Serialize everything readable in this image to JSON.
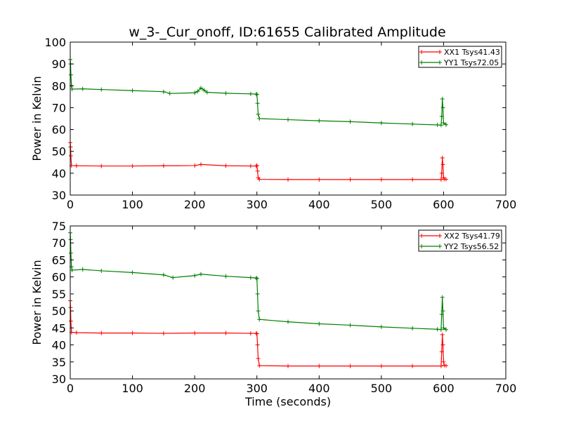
{
  "figure": {
    "title": "w_3-_Cur_onoff, ID:61655 Calibrated Amplitude"
  },
  "chart_data": [
    {
      "type": "line",
      "xlabel": "",
      "ylabel": "Power in Kelvin",
      "xlim": [
        0,
        700
      ],
      "ylim": [
        30,
        100
      ],
      "xticks": [
        0,
        100,
        200,
        300,
        400,
        500,
        600,
        700
      ],
      "yticks": [
        30,
        40,
        50,
        60,
        70,
        80,
        90,
        100
      ],
      "grid": false,
      "legend_position": "top-right",
      "series": [
        {
          "name": "XX1 Tsys41.43",
          "color": "#ff0000",
          "points": [
            [
              0,
              54
            ],
            [
              0.5,
              52
            ],
            [
              1,
              48
            ],
            [
              2,
              43.5
            ],
            [
              10,
              43.4
            ],
            [
              50,
              43.3
            ],
            [
              100,
              43.3
            ],
            [
              150,
              43.4
            ],
            [
              200,
              43.5
            ],
            [
              210,
              44
            ],
            [
              250,
              43.4
            ],
            [
              290,
              43.3
            ],
            [
              299,
              43.3
            ],
            [
              300,
              43.5
            ],
            [
              301,
              41
            ],
            [
              302,
              38
            ],
            [
              304,
              37.2
            ],
            [
              350,
              37.1
            ],
            [
              400,
              37.1
            ],
            [
              450,
              37.1
            ],
            [
              500,
              37.1
            ],
            [
              550,
              37.1
            ],
            [
              596,
              37.1
            ],
            [
              597,
              40
            ],
            [
              598,
              47
            ],
            [
              599,
              44
            ],
            [
              600,
              38
            ],
            [
              601,
              37.3
            ],
            [
              604,
              37.2
            ]
          ]
        },
        {
          "name": "YY1 Tsys72.05",
          "color": "#007f00",
          "points": [
            [
              0,
              92
            ],
            [
              0.5,
              90
            ],
            [
              1,
              85
            ],
            [
              2,
              80
            ],
            [
              3,
              78.5
            ],
            [
              20,
              78.6
            ],
            [
              50,
              78.3
            ],
            [
              100,
              77.8
            ],
            [
              150,
              77.3
            ],
            [
              160,
              76.5
            ],
            [
              200,
              76.8
            ],
            [
              205,
              77.5
            ],
            [
              210,
              79
            ],
            [
              215,
              78
            ],
            [
              220,
              77
            ],
            [
              250,
              76.6
            ],
            [
              290,
              76.3
            ],
            [
              299,
              76.2
            ],
            [
              300,
              76
            ],
            [
              301,
              72
            ],
            [
              302,
              67
            ],
            [
              304,
              65
            ],
            [
              350,
              64.5
            ],
            [
              400,
              64
            ],
            [
              450,
              63.6
            ],
            [
              500,
              63
            ],
            [
              550,
              62.5
            ],
            [
              590,
              62.1
            ],
            [
              596,
              62
            ],
            [
              597,
              66
            ],
            [
              598,
              74
            ],
            [
              599,
              70
            ],
            [
              600,
              63
            ],
            [
              604,
              62.2
            ]
          ]
        }
      ]
    },
    {
      "type": "line",
      "xlabel": "Time (seconds)",
      "ylabel": "Power in Kelvin",
      "xlim": [
        0,
        700
      ],
      "ylim": [
        30,
        75
      ],
      "xticks": [
        0,
        100,
        200,
        300,
        400,
        500,
        600,
        700
      ],
      "yticks": [
        30,
        35,
        40,
        45,
        50,
        55,
        60,
        65,
        70,
        75
      ],
      "grid": false,
      "legend_position": "top-right",
      "series": [
        {
          "name": "XX2 Tsys41.79",
          "color": "#ff0000",
          "points": [
            [
              0,
              53
            ],
            [
              0.5,
              51
            ],
            [
              1,
              47
            ],
            [
              2,
              43.7
            ],
            [
              10,
              43.6
            ],
            [
              50,
              43.5
            ],
            [
              100,
              43.5
            ],
            [
              150,
              43.4
            ],
            [
              200,
              43.5
            ],
            [
              250,
              43.5
            ],
            [
              290,
              43.4
            ],
            [
              299,
              43.4
            ],
            [
              300,
              43.3
            ],
            [
              301,
              40
            ],
            [
              302,
              36
            ],
            [
              304,
              33.9
            ],
            [
              350,
              33.8
            ],
            [
              400,
              33.8
            ],
            [
              450,
              33.8
            ],
            [
              500,
              33.8
            ],
            [
              550,
              33.8
            ],
            [
              596,
              33.8
            ],
            [
              597,
              38
            ],
            [
              598,
              43
            ],
            [
              599,
              40
            ],
            [
              600,
              35
            ],
            [
              601,
              34
            ],
            [
              604,
              33.9
            ]
          ]
        },
        {
          "name": "YY2 Tsys56.52",
          "color": "#007f00",
          "points": [
            [
              0,
              73
            ],
            [
              0.5,
              71
            ],
            [
              1,
              67
            ],
            [
              2,
              63
            ],
            [
              3,
              62
            ],
            [
              20,
              62.2
            ],
            [
              50,
              61.8
            ],
            [
              100,
              61.3
            ],
            [
              150,
              60.6
            ],
            [
              165,
              59.8
            ],
            [
              200,
              60.4
            ],
            [
              210,
              60.8
            ],
            [
              250,
              60.2
            ],
            [
              290,
              59.8
            ],
            [
              299,
              59.7
            ],
            [
              300,
              59.5
            ],
            [
              301,
              55
            ],
            [
              302,
              50
            ],
            [
              304,
              47.5
            ],
            [
              350,
              46.8
            ],
            [
              400,
              46.2
            ],
            [
              450,
              45.8
            ],
            [
              500,
              45.3
            ],
            [
              550,
              44.9
            ],
            [
              590,
              44.6
            ],
            [
              596,
              44.5
            ],
            [
              597,
              49
            ],
            [
              598,
              54
            ],
            [
              599,
              50
            ],
            [
              600,
              45
            ],
            [
              604,
              44.5
            ]
          ]
        }
      ]
    }
  ]
}
